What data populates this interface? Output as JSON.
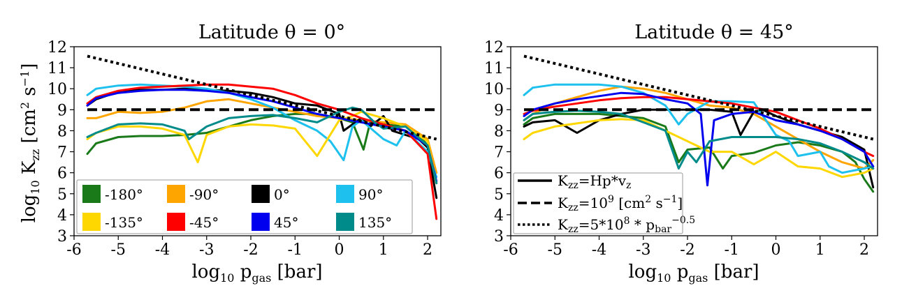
{
  "chart_data": [
    {
      "type": "line",
      "title": "Latitude θ = 0°",
      "xlabel": "log10 pgas [bar]",
      "ylabel": "log10 Kzz [cm2 s−1]",
      "xlim": [
        -6,
        2.3
      ],
      "ylim": [
        3,
        12
      ],
      "xticks": [
        "-6",
        "-5",
        "-4",
        "-3",
        "-2",
        "-1",
        "0",
        "1",
        "2"
      ],
      "yticks": [
        "3",
        "4",
        "5",
        "6",
        "7",
        "8",
        "9",
        "10",
        "11",
        "12"
      ],
      "legend_position": "lower-left",
      "legend_columns": 4,
      "legend": [
        "-180°",
        "-90°",
        "0°",
        "90°",
        "-135°",
        "-45°",
        "45°",
        "135°"
      ],
      "reference_lines": [
        {
          "name": "Kzz=10^9",
          "style": "dashed",
          "color": "#000000",
          "x": [
            -5.7,
            2.2
          ],
          "y": [
            9.0,
            9.0
          ]
        },
        {
          "name": "Kzz=5*10^8 * p^-0.5",
          "style": "dotted",
          "color": "#000000",
          "x": [
            -5.7,
            2.2
          ],
          "y": [
            11.55,
            7.6
          ]
        }
      ],
      "series": [
        {
          "name": "-180°",
          "color": "#1a7a1a",
          "x": [
            -5.7,
            -5.5,
            -5.0,
            -4.5,
            -4.0,
            -3.5,
            -3.0,
            -2.5,
            -2.0,
            -1.5,
            -1.0,
            -0.5,
            0.0,
            0.3,
            0.55,
            0.7,
            1.0,
            1.5,
            1.8,
            2.0,
            2.2
          ],
          "y": [
            6.9,
            7.4,
            7.7,
            7.75,
            7.75,
            7.8,
            7.9,
            8.2,
            8.5,
            8.7,
            8.8,
            8.8,
            8.6,
            8.4,
            7.1,
            8.4,
            8.3,
            8.2,
            7.8,
            7.3,
            5.5
          ]
        },
        {
          "name": "-90°",
          "color": "#ffa500",
          "x": [
            -5.7,
            -5.5,
            -5.0,
            -4.5,
            -4.0,
            -3.5,
            -3.0,
            -2.5,
            -2.0,
            -1.5,
            -1.0,
            -0.5,
            0.0,
            0.5,
            1.0,
            1.5,
            2.0,
            2.2
          ],
          "y": [
            8.6,
            8.6,
            8.9,
            8.85,
            8.9,
            9.1,
            9.4,
            9.5,
            9.3,
            9.1,
            8.9,
            8.7,
            8.6,
            8.5,
            8.4,
            8.3,
            7.6,
            6.0
          ]
        },
        {
          "name": "0°",
          "color": "#000000",
          "x": [
            -5.7,
            -5.5,
            -5.0,
            -4.5,
            -4.0,
            -3.5,
            -3.0,
            -2.5,
            -2.0,
            -1.5,
            -1.0,
            -0.5,
            0.0,
            0.1,
            0.3,
            0.5,
            0.7,
            1.0,
            1.2,
            1.5,
            1.8,
            2.0,
            2.2
          ],
          "y": [
            9.2,
            9.5,
            9.85,
            9.95,
            9.95,
            10.0,
            9.95,
            9.9,
            9.8,
            9.6,
            9.3,
            9.2,
            8.8,
            8.0,
            8.3,
            8.6,
            8.2,
            8.7,
            8.0,
            7.8,
            7.6,
            7.2,
            4.8
          ]
        },
        {
          "name": "90°",
          "color": "#1ec0ee",
          "x": [
            -5.7,
            -5.5,
            -5.0,
            -4.5,
            -4.0,
            -3.5,
            -3.0,
            -2.5,
            -2.0,
            -1.5,
            -1.0,
            -0.5,
            -0.2,
            0.1,
            0.3,
            0.5,
            1.0,
            1.3,
            1.5,
            2.0,
            2.2
          ],
          "y": [
            9.7,
            10.0,
            10.15,
            10.2,
            10.15,
            10.1,
            10.0,
            9.8,
            9.5,
            9.1,
            8.5,
            8.0,
            7.5,
            6.6,
            8.2,
            8.5,
            7.6,
            7.3,
            8.0,
            7.0,
            5.8
          ]
        },
        {
          "name": "-135°",
          "color": "#ffd700",
          "x": [
            -5.7,
            -5.5,
            -5.0,
            -4.5,
            -4.0,
            -3.5,
            -3.2,
            -3.0,
            -2.5,
            -2.0,
            -1.5,
            -1.0,
            -0.5,
            0.0,
            0.3,
            0.5,
            1.0,
            1.5,
            2.0,
            2.2
          ],
          "y": [
            7.6,
            7.9,
            8.2,
            8.2,
            8.1,
            7.8,
            6.5,
            7.8,
            8.2,
            8.3,
            8.25,
            8.1,
            6.8,
            8.5,
            8.7,
            8.9,
            8.6,
            8.2,
            7.5,
            5.5
          ]
        },
        {
          "name": "-45°",
          "color": "#ff0000",
          "x": [
            -5.7,
            -5.5,
            -5.0,
            -4.5,
            -4.0,
            -3.5,
            -3.0,
            -2.5,
            -2.0,
            -1.5,
            -1.0,
            -0.5,
            0.0,
            0.5,
            1.0,
            1.5,
            2.0,
            2.2
          ],
          "y": [
            9.3,
            9.6,
            9.9,
            10.05,
            10.1,
            10.15,
            10.2,
            10.2,
            10.1,
            10.0,
            9.7,
            9.3,
            9.0,
            8.6,
            8.3,
            8.0,
            6.9,
            3.8
          ]
        },
        {
          "name": "45°",
          "color": "#0000ee",
          "x": [
            -5.7,
            -5.5,
            -5.0,
            -4.5,
            -4.0,
            -3.5,
            -3.0,
            -2.5,
            -2.0,
            -1.5,
            -1.0,
            -0.5,
            0.0,
            0.5,
            1.0,
            1.5,
            2.0,
            2.2
          ],
          "y": [
            9.2,
            9.55,
            9.8,
            9.9,
            9.95,
            9.95,
            9.9,
            9.8,
            9.6,
            9.4,
            9.1,
            8.8,
            8.6,
            8.4,
            8.2,
            8.0,
            7.3,
            5.6
          ]
        },
        {
          "name": "135°",
          "color": "#008b8b",
          "x": [
            -5.7,
            -5.5,
            -5.0,
            -4.5,
            -4.0,
            -3.5,
            -3.4,
            -3.0,
            -2.5,
            -2.0,
            -1.5,
            -1.0,
            -0.5,
            0.0,
            0.3,
            0.5,
            0.8,
            1.0,
            1.5,
            2.0,
            2.2
          ],
          "y": [
            7.7,
            7.9,
            8.3,
            8.35,
            8.3,
            8.0,
            7.6,
            8.2,
            8.6,
            8.7,
            8.75,
            8.6,
            8.4,
            8.9,
            9.1,
            9.0,
            8.4,
            8.1,
            8.2,
            7.3,
            5.5
          ]
        }
      ]
    },
    {
      "type": "line",
      "title": "Latitude θ = 45°",
      "xlabel": "log10 pgas [bar]",
      "ylabel": "",
      "xlim": [
        -6,
        2.3
      ],
      "ylim": [
        3,
        12
      ],
      "xticks": [
        "-6",
        "-5",
        "-4",
        "-3",
        "-2",
        "-1",
        "0",
        "1",
        "2"
      ],
      "yticks": [
        "3",
        "4",
        "5",
        "6",
        "7",
        "8",
        "9",
        "10",
        "11",
        "12"
      ],
      "legend_position": "lower-left",
      "legend_columns": 1,
      "legend": [
        "Kzz=Hp*vz",
        "Kzz=10^9 [cm2 s−1]",
        "Kzz=5*10^8 * pbar^−0.5"
      ],
      "reference_lines": [
        {
          "name": "Kzz=10^9",
          "style": "dashed",
          "color": "#000000",
          "x": [
            -5.7,
            2.2
          ],
          "y": [
            9.0,
            9.0
          ]
        },
        {
          "name": "Kzz=5*10^8 * p^-0.5",
          "style": "dotted",
          "color": "#000000",
          "x": [
            -5.7,
            2.2
          ],
          "y": [
            11.55,
            7.6
          ]
        }
      ],
      "series": [
        {
          "name": "-180°",
          "color": "#1a7a1a",
          "x": [
            -5.7,
            -5.5,
            -5.0,
            -4.5,
            -4.0,
            -3.5,
            -3.0,
            -2.5,
            -2.2,
            -2.0,
            -1.5,
            -1.2,
            -1.0,
            -0.5,
            0.0,
            0.5,
            1.0,
            1.5,
            1.8,
            2.0,
            2.2
          ],
          "y": [
            8.3,
            8.6,
            8.8,
            8.8,
            8.8,
            8.7,
            8.6,
            8.2,
            6.5,
            7.1,
            7.2,
            6.2,
            6.8,
            6.95,
            7.3,
            7.45,
            7.3,
            7.0,
            6.5,
            5.7,
            5.1
          ]
        },
        {
          "name": "-90°",
          "color": "#ffa500",
          "x": [
            -5.7,
            -5.5,
            -5.0,
            -4.5,
            -4.0,
            -3.5,
            -3.0,
            -2.5,
            -2.0,
            -1.5,
            -1.0,
            -0.5,
            0.0,
            0.5,
            1.0,
            1.5,
            2.0,
            2.2
          ],
          "y": [
            8.5,
            8.8,
            9.3,
            9.6,
            9.9,
            10.1,
            10.0,
            9.8,
            9.5,
            9.2,
            9.1,
            8.8,
            8.2,
            7.6,
            7.0,
            6.5,
            6.2,
            6.6
          ]
        },
        {
          "name": "0°",
          "color": "#000000",
          "x": [
            -5.7,
            -5.5,
            -5.0,
            -4.5,
            -4.0,
            -3.5,
            -3.0,
            -2.5,
            -2.0,
            -1.5,
            -1.0,
            -0.8,
            -0.5,
            -0.3,
            0.0,
            0.5,
            1.0,
            1.5,
            2.0,
            2.2
          ],
          "y": [
            8.2,
            8.4,
            8.5,
            7.9,
            8.5,
            8.8,
            9.0,
            9.0,
            9.0,
            9.0,
            8.9,
            7.8,
            8.9,
            9.0,
            8.7,
            8.3,
            8.0,
            7.7,
            7.1,
            5.3
          ]
        },
        {
          "name": "90°",
          "color": "#1ec0ee",
          "x": [
            -5.7,
            -5.5,
            -5.0,
            -4.5,
            -4.0,
            -3.5,
            -3.0,
            -2.5,
            -2.2,
            -2.0,
            -1.5,
            -1.2,
            -1.0,
            -0.5,
            0.0,
            0.3,
            0.5,
            1.0,
            1.2,
            1.5,
            2.0,
            2.2
          ],
          "y": [
            9.7,
            10.05,
            10.2,
            10.2,
            10.2,
            10.1,
            9.8,
            9.2,
            8.3,
            8.8,
            9.4,
            9.4,
            9.4,
            9.35,
            7.8,
            7.5,
            6.8,
            7.0,
            6.3,
            6.0,
            6.2,
            6.3
          ]
        },
        {
          "name": "-135°",
          "color": "#ffd700",
          "x": [
            -5.7,
            -5.5,
            -5.0,
            -4.5,
            -4.0,
            -3.5,
            -3.0,
            -2.5,
            -2.0,
            -1.5,
            -1.0,
            -0.5,
            0.0,
            0.5,
            1.0,
            1.5,
            2.0,
            2.2
          ],
          "y": [
            7.6,
            7.9,
            8.2,
            8.35,
            8.5,
            8.55,
            8.5,
            8.0,
            7.5,
            7.0,
            7.0,
            6.4,
            7.0,
            6.3,
            6.2,
            5.8,
            6.0,
            6.2
          ]
        },
        {
          "name": "-45°",
          "color": "#ff0000",
          "x": [
            -5.7,
            -5.5,
            -5.0,
            -4.5,
            -4.0,
            -3.5,
            -3.0,
            -2.5,
            -2.0,
            -1.5,
            -1.0,
            -0.5,
            0.0,
            0.5,
            1.0,
            1.5,
            2.0,
            2.2
          ],
          "y": [
            8.8,
            8.95,
            9.15,
            9.3,
            9.45,
            9.55,
            9.6,
            9.6,
            9.5,
            9.4,
            9.3,
            9.1,
            8.9,
            8.5,
            8.1,
            7.6,
            7.0,
            6.8
          ]
        },
        {
          "name": "45°",
          "color": "#0000ee",
          "x": [
            -5.7,
            -5.5,
            -5.0,
            -4.5,
            -4.0,
            -3.5,
            -3.0,
            -2.5,
            -2.0,
            -1.7,
            -1.55,
            -1.4,
            -1.0,
            -0.5,
            0.0,
            0.5,
            1.0,
            1.5,
            2.0,
            2.2
          ],
          "y": [
            8.7,
            9.0,
            9.3,
            9.5,
            9.65,
            9.8,
            9.75,
            9.5,
            9.3,
            8.8,
            5.4,
            8.5,
            8.8,
            8.9,
            8.5,
            8.3,
            8.0,
            7.6,
            7.0,
            6.3
          ]
        },
        {
          "name": "135°",
          "color": "#008b8b",
          "x": [
            -5.7,
            -5.5,
            -5.0,
            -4.5,
            -4.0,
            -3.5,
            -3.0,
            -2.5,
            -2.2,
            -2.0,
            -1.8,
            -1.5,
            -1.0,
            -0.5,
            0.0,
            0.5,
            1.0,
            1.5,
            2.0,
            2.2
          ],
          "y": [
            8.5,
            8.8,
            8.9,
            8.95,
            8.9,
            8.8,
            8.4,
            8.0,
            6.2,
            7.0,
            6.5,
            7.5,
            7.7,
            7.7,
            7.7,
            7.6,
            7.4,
            7.0,
            6.5,
            6.2
          ]
        }
      ]
    }
  ]
}
